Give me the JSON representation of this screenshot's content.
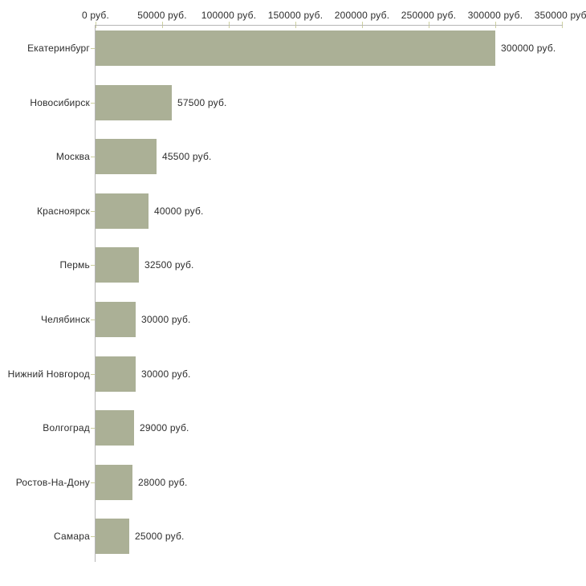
{
  "chart_data": {
    "type": "bar",
    "orientation": "horizontal",
    "title": "",
    "categories": [
      "Екатеринбург",
      "Новосибирск",
      "Москва",
      "Красноярск",
      "Пермь",
      "Челябинск",
      "Нижний Новгород",
      "Волгоград",
      "Ростов-На-Дону",
      "Самара"
    ],
    "values": [
      300000,
      57500,
      45500,
      40000,
      32500,
      30000,
      30000,
      29000,
      28000,
      25000
    ],
    "value_labels": [
      "300000 руб.",
      "57500 руб.",
      "45500 руб.",
      "40000 руб.",
      "32500 руб.",
      "30000 руб.",
      "30000 руб.",
      "29000 руб.",
      "28000 руб.",
      "25000 руб."
    ],
    "x_axis": {
      "position": "top",
      "unit": "руб.",
      "tick_values": [
        0,
        50000,
        100000,
        150000,
        200000,
        250000,
        300000,
        350000
      ],
      "tick_labels": [
        "0 руб.",
        "50000 руб.",
        "100000 руб.",
        "150000 руб.",
        "200000 руб.",
        "250000 руб.",
        "300000 руб.",
        "350000 руб."
      ],
      "xlim": [
        0,
        350000
      ]
    },
    "legend": null,
    "grid": false,
    "colors": {
      "bar": "#abb096",
      "axis_line": "#b5b5b5",
      "tick_mark": "#cdd09e",
      "text": "#2d2d2d",
      "background": "#ffffff"
    }
  }
}
